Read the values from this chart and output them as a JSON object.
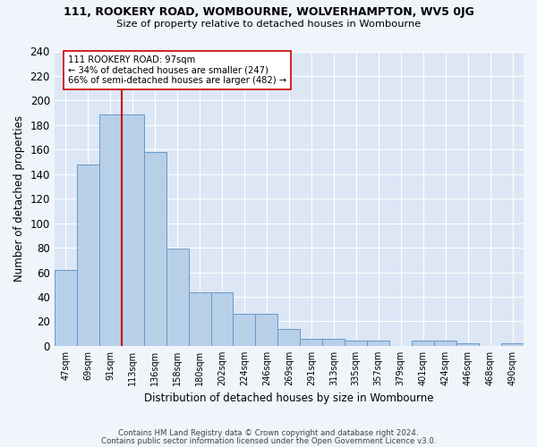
{
  "title1": "111, ROOKERY ROAD, WOMBOURNE, WOLVERHAMPTON, WV5 0JG",
  "title2": "Size of property relative to detached houses in Wombourne",
  "xlabel": "Distribution of detached houses by size in Wombourne",
  "ylabel": "Number of detached properties",
  "footer1": "Contains HM Land Registry data © Crown copyright and database right 2024.",
  "footer2": "Contains public sector information licensed under the Open Government Licence v3.0.",
  "bar_labels": [
    "47sqm",
    "69sqm",
    "91sqm",
    "113sqm",
    "136sqm",
    "158sqm",
    "180sqm",
    "202sqm",
    "224sqm",
    "246sqm",
    "269sqm",
    "291sqm",
    "313sqm",
    "335sqm",
    "357sqm",
    "379sqm",
    "401sqm",
    "424sqm",
    "446sqm",
    "468sqm",
    "490sqm"
  ],
  "bar_values": [
    62,
    148,
    189,
    189,
    158,
    79,
    44,
    44,
    26,
    26,
    14,
    6,
    6,
    4,
    4,
    0,
    4,
    4,
    2,
    0,
    2
  ],
  "bar_color": "#b8cfe8",
  "bar_edge_color": "#6699cc",
  "bg_color": "#dce6f5",
  "grid_color": "#ffffff",
  "annotation_line1": "111 ROOKERY ROAD: 97sqm",
  "annotation_line2": "← 34% of detached houses are smaller (247)",
  "annotation_line3": "66% of semi-detached houses are larger (482) →",
  "vline_color": "#cc0000",
  "annotation_box_color": "#ffffff",
  "annotation_box_edge": "#cc0000",
  "ylim": [
    0,
    240
  ],
  "yticks": [
    0,
    20,
    40,
    60,
    80,
    100,
    120,
    140,
    160,
    180,
    200,
    220,
    240
  ],
  "fig_width": 6.0,
  "fig_height": 5.0,
  "dpi": 100
}
